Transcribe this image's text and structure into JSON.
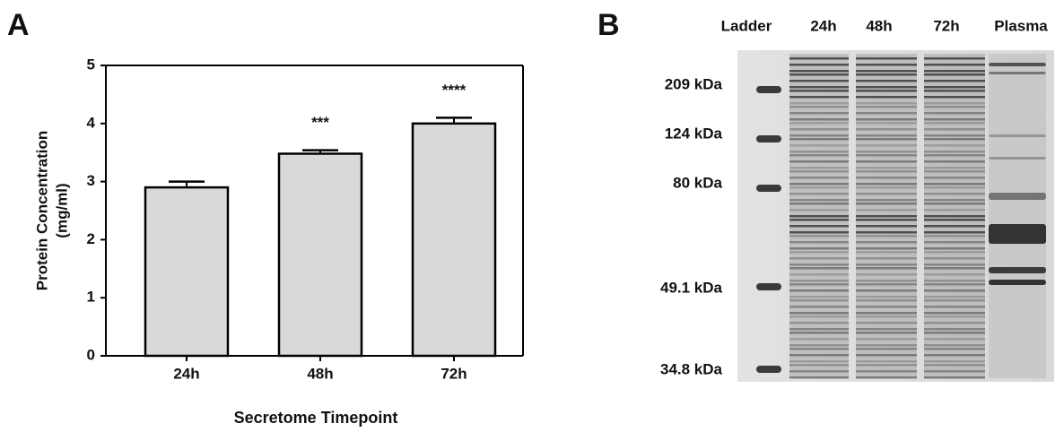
{
  "chart_data": {
    "type": "bar",
    "panel_label": "A",
    "categories": [
      "24h",
      "48h",
      "72h"
    ],
    "values": [
      2.9,
      3.48,
      4.0
    ],
    "errors": [
      0.1,
      0.06,
      0.1
    ],
    "annotations": [
      null,
      "***",
      "****"
    ],
    "color": "#d9d9d9",
    "xlabel": "Secretome Timepoint",
    "ylabel": [
      "Protein Concentration",
      "(mg/ml)"
    ],
    "ylim": [
      0,
      5
    ],
    "yticks": [
      0,
      1,
      2,
      3,
      4,
      5
    ]
  },
  "gel": {
    "panel_label": "B",
    "lanes": [
      "Ladder",
      "24h",
      "48h",
      "72h",
      "Plasma"
    ],
    "markers": [
      "209 kDa",
      "124 kDa",
      "80 kDa",
      "49.1 kDa",
      "34.8 kDa"
    ]
  }
}
